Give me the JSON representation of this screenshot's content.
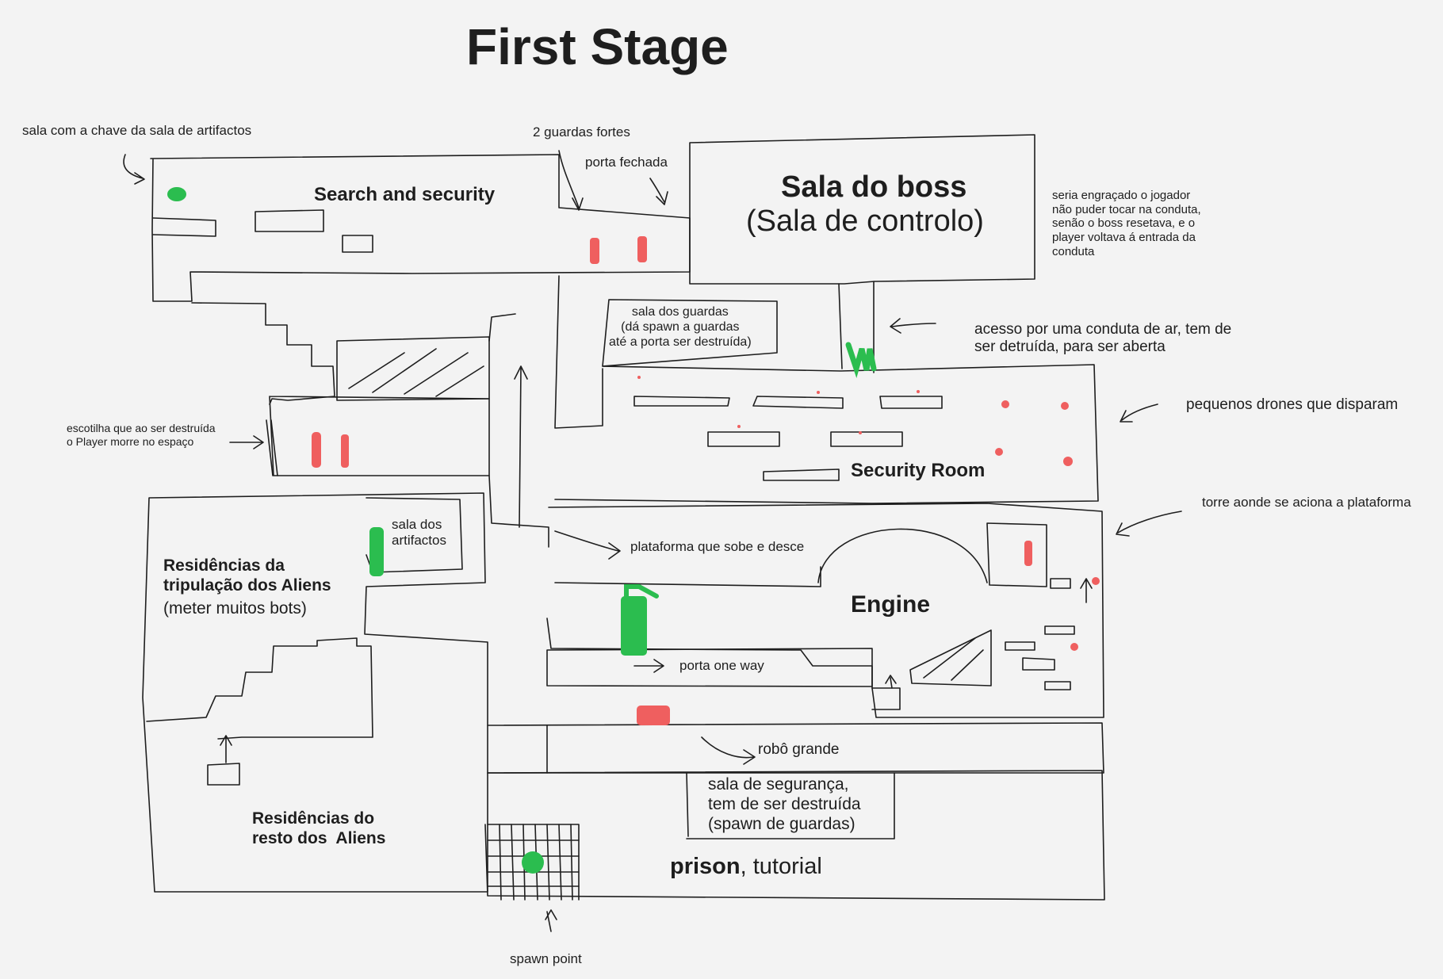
{
  "title": "First Stage",
  "colors": {
    "background": "#f3f3f3",
    "ink": "#1e1e1e",
    "enemy": "#ef5f5f",
    "player_item": "#2bbd4f"
  },
  "rooms": {
    "search_security": "Search and security",
    "boss_name": "Sala do boss",
    "boss_subtitle": "(Sala de controlo)",
    "security_room": "Security Room",
    "engine": "Engine",
    "crew_residences": "Residências da\ntripulação dos Aliens",
    "crew_residences_note": "(meter muitos bots)",
    "other_residences": "Residências do\nresto dos  Aliens",
    "prison_bold": "prison",
    "prison_rest": ", tutorial",
    "artifacts_room": "sala dos\nartifactos",
    "guards_room": "sala dos guardas\n(dá spawn a guardas\naté a porta ser destruída)",
    "security_chamber": "sala de segurança,\ntem de ser destruída\n(spawn de guardas)"
  },
  "annotations": {
    "key_room": "sala com a chave da sala de artifactos",
    "strong_guards": "2 guardas fortes",
    "closed_door": "porta fechada",
    "boss_note": "seria engraçado o jogador\nnão puder tocar na conduta,\nsenão o boss resetava, e o\nplayer voltava á entrada da\nconduta",
    "air_duct": "acesso por uma conduta de ar, tem de\nser detruída, para ser aberta",
    "drones": "pequenos drones que disparam",
    "hatch": "escotilha que ao ser destruída\no Player morre no espaço",
    "tower": "torre aonde se aciona a plataforma",
    "moving_platform": "plataforma que sobe e desce",
    "one_way_door": "porta one way",
    "big_robot": "robô grande",
    "spawn_point": "spawn point"
  }
}
